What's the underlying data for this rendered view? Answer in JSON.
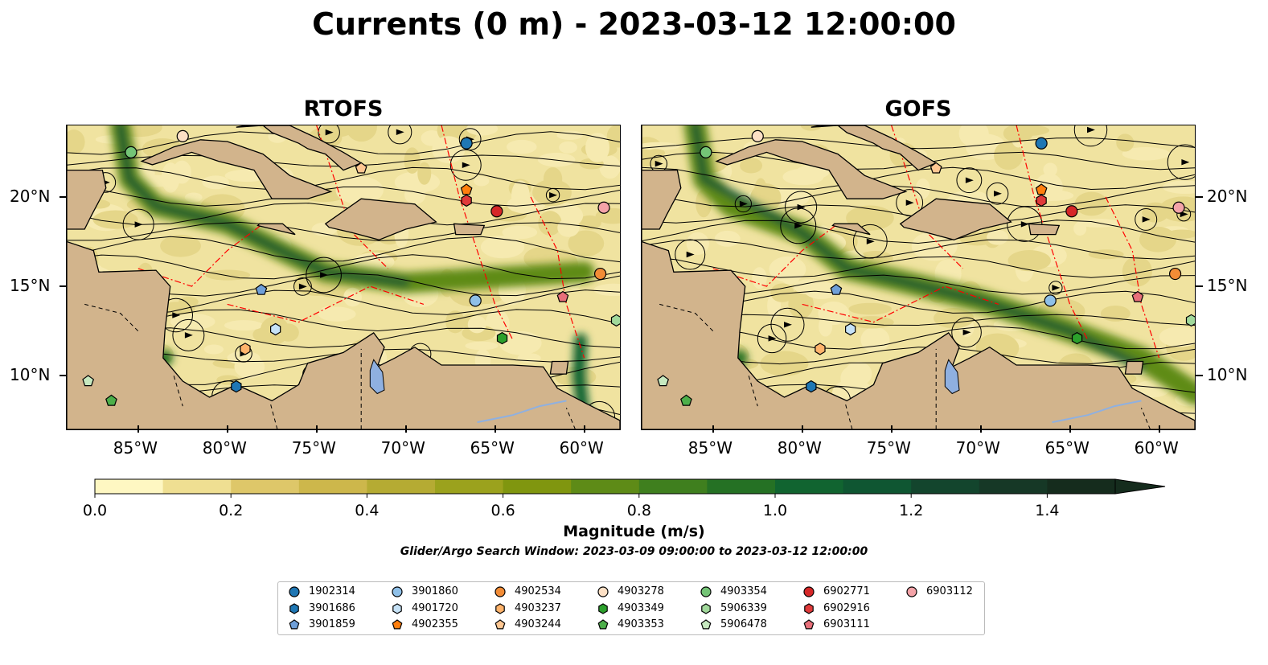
{
  "chart_data": {
    "type": "map",
    "title": "Currents (0 m) - 2023-03-12 12:00:00",
    "panels": [
      {
        "title": "RTOFS"
      },
      {
        "title": "GOFS"
      }
    ],
    "lon_range": [
      -89,
      -58
    ],
    "lat_range": [
      7,
      24
    ],
    "lon_ticks": [
      -85,
      -80,
      -75,
      -70,
      -65,
      -60
    ],
    "lon_tick_labels": [
      "85°W",
      "80°W",
      "75°W",
      "70°W",
      "65°W",
      "60°W"
    ],
    "lat_ticks": [
      10,
      15,
      20
    ],
    "lat_tick_labels": [
      "10°N",
      "15°N",
      "20°N"
    ],
    "colorbar": {
      "label": "Magnitude (m/s)",
      "min": 0.0,
      "max": 1.5,
      "extend": "max",
      "ticks": [
        0.0,
        0.2,
        0.4,
        0.6,
        0.8,
        1.0,
        1.2,
        1.4
      ],
      "tick_labels": [
        "0.0",
        "0.2",
        "0.4",
        "0.6",
        "0.8",
        "1.0",
        "1.2",
        "1.4"
      ],
      "colors": [
        "#fef7c2",
        "#efdf92",
        "#dec769",
        "#cdb74b",
        "#b5ab33",
        "#9ba21d",
        "#80960f",
        "#5e8b17",
        "#3f7f1e",
        "#257124",
        "#116430",
        "#0f5632",
        "#13452d",
        "#163826",
        "#152c1d"
      ]
    },
    "search_window": "Glider/Argo Search Window: 2023-03-09 09:00:00 to 2023-03-12 12:00:00",
    "legend": [
      {
        "id": "1902314",
        "color": "#1f77b4",
        "marker": "circle"
      },
      {
        "id": "3901686",
        "color": "#1f77b4",
        "marker": "hexagon"
      },
      {
        "id": "3901859",
        "color": "#6f9fd8",
        "marker": "pentagon"
      },
      {
        "id": "3901860",
        "color": "#8fc0e8",
        "marker": "circle"
      },
      {
        "id": "4901720",
        "color": "#c6e2f7",
        "marker": "hexagon"
      },
      {
        "id": "4902355",
        "color": "#ff7f0e",
        "marker": "pentagon"
      },
      {
        "id": "4902534",
        "color": "#f28c36",
        "marker": "circle"
      },
      {
        "id": "4903237",
        "color": "#ffb36b",
        "marker": "hexagon"
      },
      {
        "id": "4903244",
        "color": "#ffc792",
        "marker": "pentagon"
      },
      {
        "id": "4903278",
        "color": "#fde0c5",
        "marker": "circle"
      },
      {
        "id": "4903349",
        "color": "#2ca02c",
        "marker": "hexagon"
      },
      {
        "id": "4903353",
        "color": "#4daf4a",
        "marker": "pentagon"
      },
      {
        "id": "4903354",
        "color": "#74c476",
        "marker": "circle"
      },
      {
        "id": "5906339",
        "color": "#a1d99b",
        "marker": "hexagon"
      },
      {
        "id": "5906478",
        "color": "#c7e9c0",
        "marker": "pentagon"
      },
      {
        "id": "6902771",
        "color": "#d62728",
        "marker": "circle"
      },
      {
        "id": "6902916",
        "color": "#e03a3a",
        "marker": "hexagon"
      },
      {
        "id": "6903111",
        "color": "#e8707a",
        "marker": "pentagon"
      },
      {
        "id": "6903112",
        "color": "#f4a3a8",
        "marker": "circle"
      }
    ],
    "platform_positions": [
      {
        "id": "1902314",
        "lon": -66.6,
        "lat": 23.0
      },
      {
        "id": "3901686",
        "lon": -79.5,
        "lat": 9.4
      },
      {
        "id": "3901859",
        "lon": -78.1,
        "lat": 14.8
      },
      {
        "id": "3901860",
        "lon": -66.1,
        "lat": 14.2
      },
      {
        "id": "4901720",
        "lon": -77.3,
        "lat": 12.6
      },
      {
        "id": "4902355",
        "lon": -66.6,
        "lat": 20.4
      },
      {
        "id": "4902534",
        "lon": -59.1,
        "lat": 15.7
      },
      {
        "id": "4903237",
        "lon": -79.0,
        "lat": 11.5
      },
      {
        "id": "4903244",
        "lon": -72.5,
        "lat": 21.6
      },
      {
        "id": "4903278",
        "lon": -82.5,
        "lat": 23.4
      },
      {
        "id": "4903349",
        "lon": -64.6,
        "lat": 12.1
      },
      {
        "id": "4903353",
        "lon": -86.5,
        "lat": 8.6
      },
      {
        "id": "4903354",
        "lon": -85.4,
        "lat": 22.5
      },
      {
        "id": "5906339",
        "lon": -58.2,
        "lat": 13.1
      },
      {
        "id": "5906478",
        "lon": -87.8,
        "lat": 9.7
      },
      {
        "id": "6902771",
        "lon": -64.9,
        "lat": 19.2
      },
      {
        "id": "6902916",
        "lon": -66.6,
        "lat": 19.8
      },
      {
        "id": "6903111",
        "lon": -61.2,
        "lat": 14.4
      },
      {
        "id": "6903112",
        "lon": -58.9,
        "lat": 19.4
      }
    ]
  }
}
